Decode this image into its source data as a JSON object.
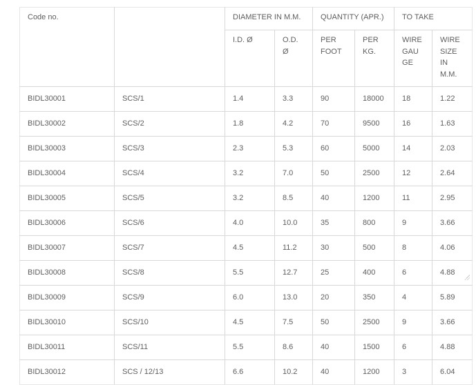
{
  "table": {
    "header": {
      "code_no": "Code no.",
      "type_col": "",
      "group_diameter": "DIAMETER IN M.M.",
      "group_quantity": "QUANTITY (APR.)",
      "group_to_take": "TO TAKE",
      "sub_id": "I.D. Ø",
      "sub_od": "O.D. Ø",
      "sub_per_foot": "PER FOOT",
      "sub_per_kg": "PER KG.",
      "sub_wire_gauge": "WIRE GAUGE",
      "sub_wire_size": "WIRE SIZE IN M.M."
    },
    "col_keys": [
      "code-no",
      "type",
      "id-diameter",
      "od-diameter",
      "per-foot",
      "per-kg",
      "wire-gauge",
      "wire-size-mm"
    ],
    "rows": [
      [
        "BIDL30001",
        "SCS/1",
        "1.4",
        "3.3",
        "90",
        "18000",
        "18",
        "1.22"
      ],
      [
        "BIDL30002",
        "SCS/2",
        "1.8",
        "4.2",
        "70",
        "9500",
        "16",
        "1.63"
      ],
      [
        "BIDL30003",
        "SCS/3",
        "2.3",
        "5.3",
        "60",
        "5000",
        "14",
        "2.03"
      ],
      [
        "BIDL30004",
        "SCS/4",
        "3.2",
        "7.0",
        "50",
        "2500",
        "12",
        "2.64"
      ],
      [
        "BIDL30005",
        "SCS/5",
        "3.2",
        "8.5",
        "40",
        "1200",
        "11",
        "2.95"
      ],
      [
        "BIDL30006",
        "SCS/6",
        "4.0",
        "10.0",
        "35",
        "800",
        "9",
        "3.66"
      ],
      [
        "BIDL30007",
        "SCS/7",
        "4.5",
        "11.2",
        "30",
        "500",
        "8",
        "4.06"
      ],
      [
        "BIDL30008",
        "SCS/8",
        "5.5",
        "12.7",
        "25",
        "400",
        "6",
        "4.88"
      ],
      [
        "BIDL30009",
        "SCS/9",
        "6.0",
        "13.0",
        "20",
        "350",
        "4",
        "5.89"
      ],
      [
        "BIDL30010",
        "SCS/10",
        "4.5",
        "7.5",
        "50",
        "2500",
        "9",
        "3.66"
      ],
      [
        "BIDL30011",
        "SCS/11",
        "5.5",
        "8.6",
        "40",
        "1500",
        "6",
        "4.88"
      ],
      [
        "BIDL30012",
        "SCS / 12/13",
        "6.6",
        "10.2",
        "40",
        "1200",
        "3",
        "6.04"
      ]
    ],
    "colors": {
      "text": "#5d5d5d",
      "border_inner": "#d8d8d8",
      "border_outer": "#e6e6e6",
      "background": "#ffffff"
    }
  }
}
